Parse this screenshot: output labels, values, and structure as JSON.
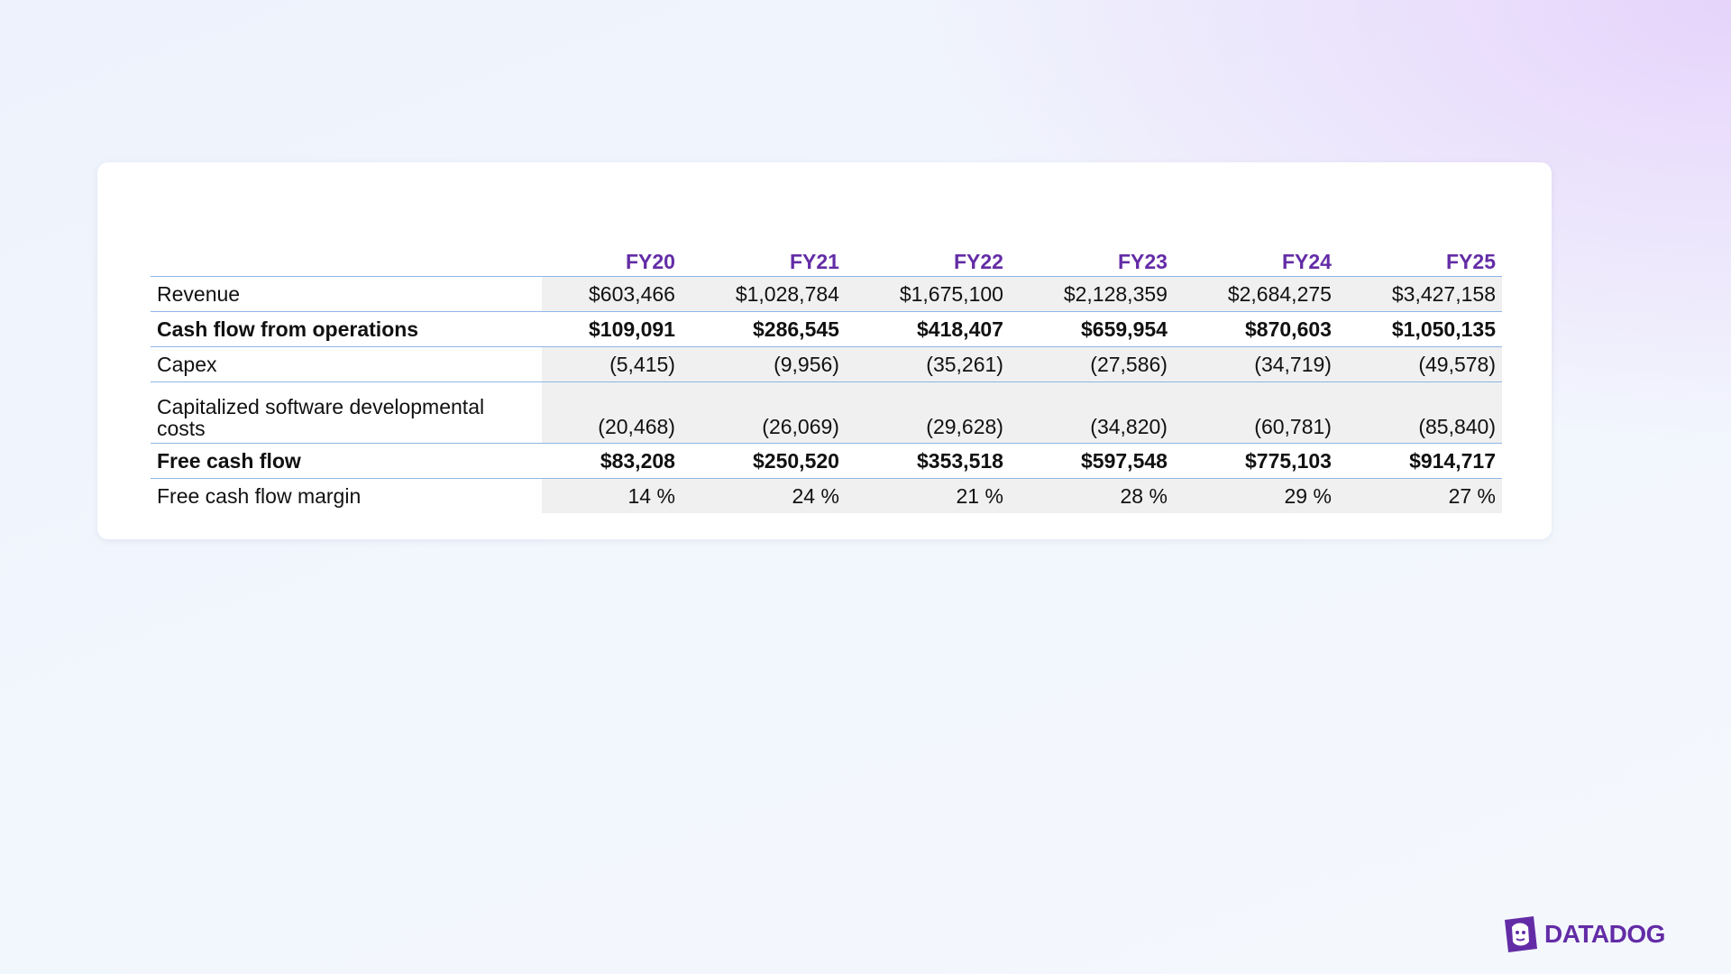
{
  "table": {
    "columns": [
      "FY20",
      "FY21",
      "FY22",
      "FY23",
      "FY24",
      "FY25"
    ],
    "rows": [
      {
        "label": "Revenue",
        "bold": false,
        "shaded": true,
        "cells": [
          "$603,466",
          "$1,028,784",
          "$1,675,100",
          "$2,128,359",
          "$2,684,275",
          "$3,427,158"
        ]
      },
      {
        "label": "Cash flow from operations",
        "bold": true,
        "shaded": false,
        "cells": [
          "$109,091",
          "$286,545",
          "$418,407",
          "$659,954",
          "$870,603",
          "$1,050,135"
        ]
      },
      {
        "label": "Capex",
        "bold": false,
        "shaded": true,
        "cells": [
          "(5,415)",
          "(9,956)",
          "(35,261)",
          "(27,586)",
          "(34,719)",
          "(49,578)"
        ]
      },
      {
        "label": "Capitalized software developmental costs",
        "bold": false,
        "shaded": true,
        "cells": [
          "(20,468)",
          "(26,069)",
          "(29,628)",
          "(34,820)",
          "(60,781)",
          "(85,840)"
        ]
      },
      {
        "label": "Free cash flow",
        "bold": true,
        "shaded": false,
        "cells": [
          "$83,208",
          "$250,520",
          "$353,518",
          "$597,548",
          "$775,103",
          "$914,717"
        ]
      },
      {
        "label": "Free cash flow margin",
        "bold": false,
        "shaded": true,
        "cells": [
          "14 %",
          "24 %",
          "21 %",
          "28 %",
          "29 %",
          "27 %"
        ]
      }
    ]
  },
  "logo": {
    "text": "DATADOG"
  }
}
